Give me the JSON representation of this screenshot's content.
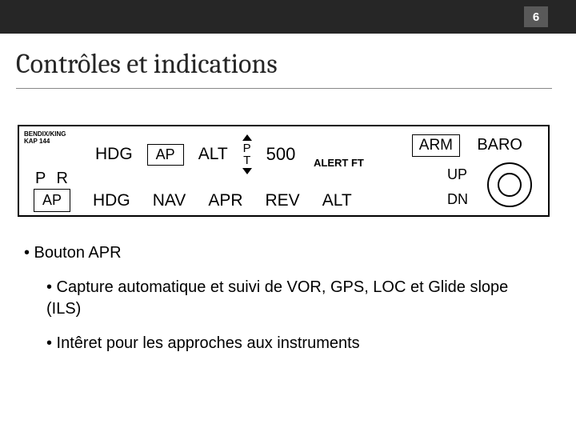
{
  "page_number": "6",
  "title": "Contrôles et indications",
  "panel": {
    "brand_line1": "BENDIX/KING",
    "brand_line2": "KAP 144",
    "hdg": "HDG",
    "ap": "AP",
    "alt": "ALT",
    "p": "P",
    "t": "T",
    "value": "500",
    "alert_ft": "ALERT FT",
    "arm": "ARM",
    "baro": "BARO",
    "pr": "P  R",
    "up": "UP",
    "dn": "DN",
    "buttons": {
      "ap": "AP",
      "hdg": "HDG",
      "nav": "NAV",
      "apr": "APR",
      "rev": "REV",
      "alt": "ALT"
    }
  },
  "bullets": {
    "b1": "• Bouton APR",
    "b2": "• Capture automatique et suivi de VOR, GPS, LOC et Glide slope (ILS)",
    "b3": "• Intêret pour les approches aux instruments"
  },
  "colors": {
    "header": "#262626",
    "pagebox": "#595959",
    "underline": "#888888",
    "border": "#000000",
    "text": "#000000",
    "bg": "#ffffff"
  }
}
